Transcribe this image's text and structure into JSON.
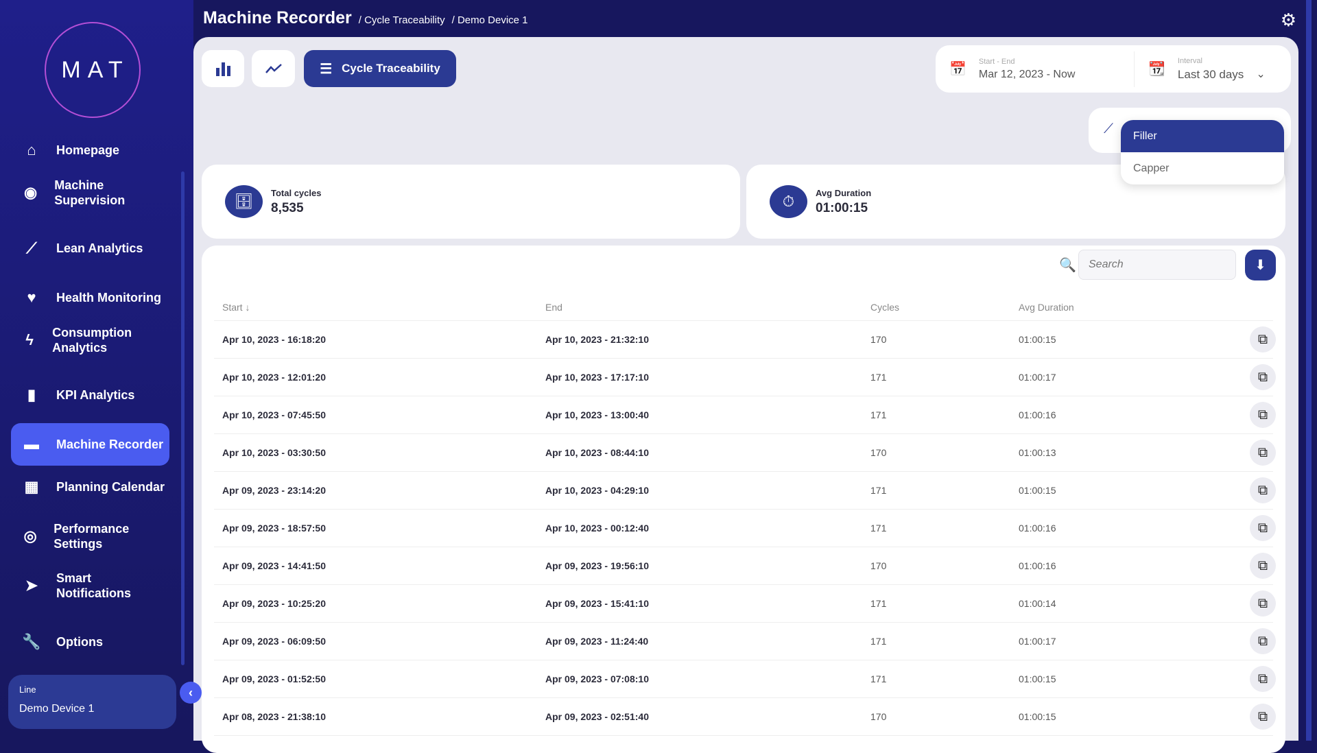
{
  "logo": "MAT",
  "header": {
    "title": "Machine Recorder",
    "crumbs": [
      "/ Cycle Traceability",
      "/ Demo Device 1"
    ]
  },
  "sidebar": {
    "items": [
      {
        "label": "Homepage",
        "icon": "home-icon"
      },
      {
        "label": "Machine Supervision",
        "icon": "eye-icon"
      },
      {
        "label": "Lean Analytics",
        "icon": "trend-icon"
      },
      {
        "label": "Health Monitoring",
        "icon": "heart-icon"
      },
      {
        "label": "Consumption Analytics",
        "icon": "bolt-icon"
      },
      {
        "label": "KPI Analytics",
        "icon": "bar-chart-icon"
      },
      {
        "label": "Machine Recorder",
        "icon": "recorder-icon",
        "active": true
      },
      {
        "label": "Planning Calendar",
        "icon": "calendar-icon"
      },
      {
        "label": "Performance Settings",
        "icon": "gauge-icon"
      },
      {
        "label": "Smart Notifications",
        "icon": "send-icon"
      },
      {
        "label": "Options",
        "icon": "wrench-icon"
      }
    ],
    "line_label": "Line",
    "line_value": "Demo Device 1"
  },
  "toolbar": {
    "traceability_label": "Cycle Traceability"
  },
  "date": {
    "range_label": "Start - End",
    "range_value": "Mar 12, 2023 - Now",
    "interval_label": "Interval",
    "interval_value": "Last 30 days"
  },
  "machine_dropdown": {
    "options": [
      "Filler",
      "Capper"
    ],
    "selected": "Filler"
  },
  "kpis": {
    "total_label": "Total cycles",
    "total_value": "8,535",
    "avg_label": "Avg Duration",
    "avg_value": "01:00:15"
  },
  "table": {
    "search_placeholder": "Search",
    "headers": [
      "Start ↓",
      "End",
      "Cycles",
      "Avg Duration"
    ],
    "rows": [
      [
        "Apr 10, 2023 - 16:18:20",
        "Apr 10, 2023 - 21:32:10",
        "170",
        "01:00:15"
      ],
      [
        "Apr 10, 2023 - 12:01:20",
        "Apr 10, 2023 - 17:17:10",
        "171",
        "01:00:17"
      ],
      [
        "Apr 10, 2023 - 07:45:50",
        "Apr 10, 2023 - 13:00:40",
        "171",
        "01:00:16"
      ],
      [
        "Apr 10, 2023 - 03:30:50",
        "Apr 10, 2023 - 08:44:10",
        "170",
        "01:00:13"
      ],
      [
        "Apr 09, 2023 - 23:14:20",
        "Apr 10, 2023 - 04:29:10",
        "171",
        "01:00:15"
      ],
      [
        "Apr 09, 2023 - 18:57:50",
        "Apr 10, 2023 - 00:12:40",
        "171",
        "01:00:16"
      ],
      [
        "Apr 09, 2023 - 14:41:50",
        "Apr 09, 2023 - 19:56:10",
        "170",
        "01:00:16"
      ],
      [
        "Apr 09, 2023 - 10:25:20",
        "Apr 09, 2023 - 15:41:10",
        "171",
        "01:00:14"
      ],
      [
        "Apr 09, 2023 - 06:09:50",
        "Apr 09, 2023 - 11:24:40",
        "171",
        "01:00:17"
      ],
      [
        "Apr 09, 2023 - 01:52:50",
        "Apr 09, 2023 - 07:08:10",
        "171",
        "01:00:15"
      ],
      [
        "Apr 08, 2023 - 21:38:10",
        "Apr 09, 2023 - 02:51:40",
        "170",
        "01:00:15"
      ]
    ]
  },
  "colors": {
    "sidebar": "#1f1f8a",
    "primary": "#2b3a93",
    "active": "#4a5cf0",
    "background": "#e8e8f0"
  }
}
